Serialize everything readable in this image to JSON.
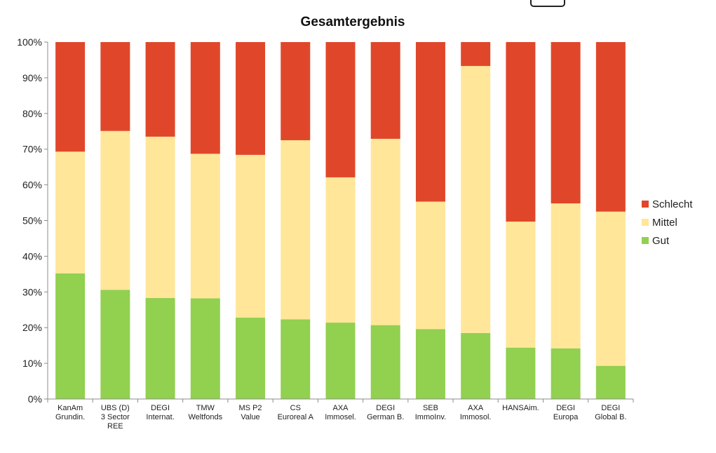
{
  "chart_data": {
    "type": "bar",
    "stacked": true,
    "title": "Gesamtergebnis",
    "categories": [
      [
        "KanAm",
        "Grundin."
      ],
      [
        "UBS (D)",
        "3 Sector",
        "REE"
      ],
      [
        "DEGI",
        "Internat."
      ],
      [
        "TMW",
        "Weltfonds"
      ],
      [
        "MS P2",
        "Value"
      ],
      [
        "CS",
        "Euroreal A"
      ],
      [
        "AXA",
        "Immosel."
      ],
      [
        "DEGI",
        "German B."
      ],
      [
        "SEB",
        "ImmoInv."
      ],
      [
        "AXA",
        "Immosol."
      ],
      [
        "HANSAim."
      ],
      [
        "DEGI",
        "Europa"
      ],
      [
        "DEGI",
        "Global B."
      ]
    ],
    "series": [
      {
        "name": "Gut",
        "color": "#92d050",
        "values": [
          35.2,
          30.6,
          28.3,
          28.2,
          22.8,
          22.3,
          21.4,
          20.7,
          19.6,
          18.5,
          14.4,
          14.2,
          9.3
        ]
      },
      {
        "name": "Mittel",
        "color": "#ffe699",
        "values": [
          34.1,
          44.5,
          45.2,
          40.5,
          45.6,
          50.2,
          40.7,
          52.2,
          35.7,
          74.8,
          35.3,
          40.6,
          43.2
        ]
      },
      {
        "name": "Schlecht",
        "color": "#e0472a",
        "values": [
          30.7,
          24.9,
          26.5,
          31.3,
          31.6,
          27.5,
          37.9,
          27.1,
          44.7,
          6.7,
          50.3,
          45.2,
          47.5
        ]
      }
    ],
    "yticks": [
      "0%",
      "10%",
      "20%",
      "30%",
      "40%",
      "50%",
      "60%",
      "70%",
      "80%",
      "90%",
      "100%"
    ],
    "ylim": [
      0,
      100
    ],
    "grid": false,
    "legend": {
      "position": "right",
      "entries": [
        "Schlecht",
        "Mittel",
        "Gut"
      ]
    }
  }
}
